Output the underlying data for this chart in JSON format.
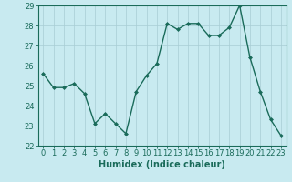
{
  "x": [
    0,
    1,
    2,
    3,
    4,
    5,
    6,
    7,
    8,
    9,
    10,
    11,
    12,
    13,
    14,
    15,
    16,
    17,
    18,
    19,
    20,
    21,
    22,
    23
  ],
  "y": [
    25.6,
    24.9,
    24.9,
    25.1,
    24.6,
    23.1,
    23.6,
    23.1,
    22.6,
    24.7,
    25.5,
    26.1,
    28.1,
    27.8,
    28.1,
    28.1,
    27.5,
    27.5,
    27.9,
    29.0,
    26.4,
    24.7,
    23.3,
    22.5
  ],
  "line_color": "#1a6b5a",
  "marker": "D",
  "marker_size": 2,
  "bg_color": "#c8eaf0",
  "grid_color": "#a8cdd4",
  "xlabel": "Humidex (Indice chaleur)",
  "ylim": [
    22,
    29
  ],
  "xlim": [
    -0.5,
    23.5
  ],
  "yticks": [
    22,
    23,
    24,
    25,
    26,
    27,
    28,
    29
  ],
  "xticks": [
    0,
    1,
    2,
    3,
    4,
    5,
    6,
    7,
    8,
    9,
    10,
    11,
    12,
    13,
    14,
    15,
    16,
    17,
    18,
    19,
    20,
    21,
    22,
    23
  ],
  "xlabel_fontsize": 7,
  "tick_fontsize": 6,
  "line_width": 1.0
}
